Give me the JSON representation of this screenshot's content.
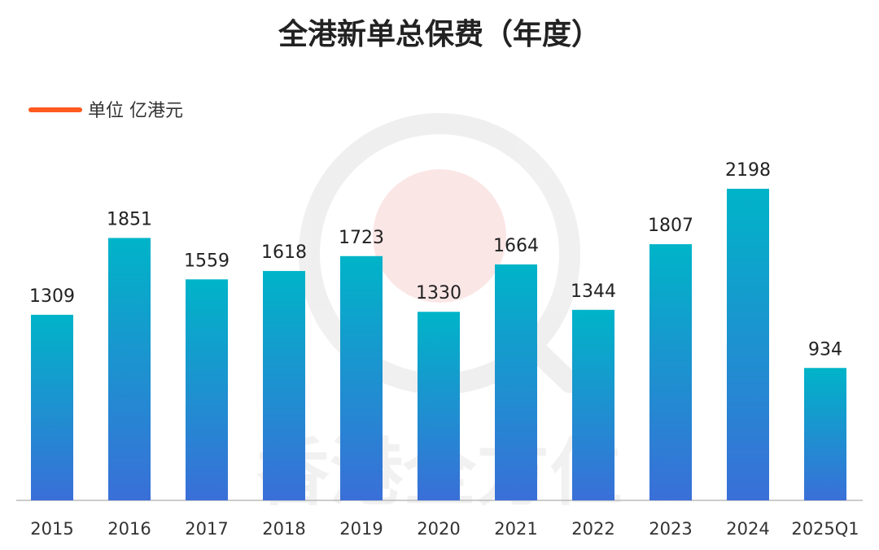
{
  "chart_data": {
    "type": "bar",
    "title": "全港新单总保费（年度）",
    "legend": {
      "label": "单位 亿港元",
      "color": "#ff5a1f",
      "placement": "top-left"
    },
    "categories": [
      "2015",
      "2016",
      "2017",
      "2018",
      "2019",
      "2020",
      "2021",
      "2022",
      "2023",
      "2024",
      "2025Q1"
    ],
    "values": [
      1309,
      1851,
      1559,
      1618,
      1723,
      1330,
      1664,
      1344,
      1807,
      2198,
      934
    ],
    "ylim": [
      0,
      2198
    ],
    "grid": false,
    "bar_gradient": {
      "top": "#00b4c8",
      "bottom": "#3a6fd8"
    }
  },
  "watermark": {
    "text": "香港全方位",
    "color": "#e8434a"
  }
}
